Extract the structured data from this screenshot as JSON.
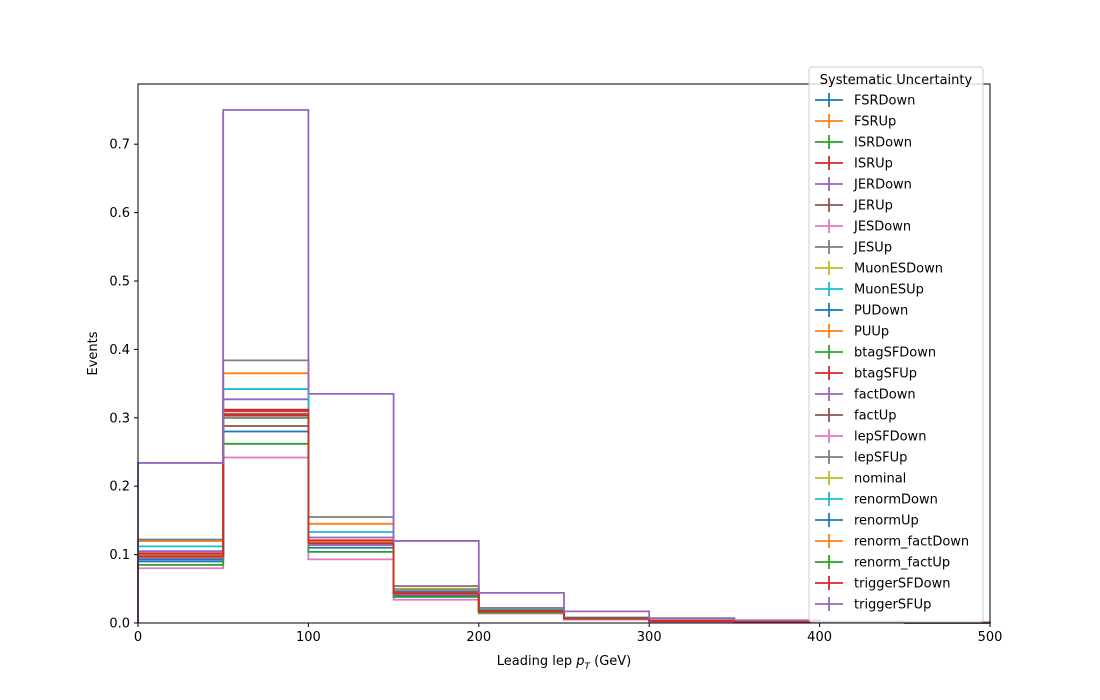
{
  "chart_data": {
    "type": "line",
    "step": true,
    "xlabel": "Leading lep p_T (GeV)",
    "xlabel_parts": {
      "prefix": "Leading lep ",
      "var": "p",
      "sub": "T",
      "suffix": " (GeV)"
    },
    "ylabel": "Events",
    "xlim": [
      0,
      500
    ],
    "ylim": [
      0,
      0.788
    ],
    "xticks": [
      "0",
      "100",
      "200",
      "300",
      "400",
      "500"
    ],
    "yticks": [
      "0.0",
      "0.1",
      "0.2",
      "0.3",
      "0.4",
      "0.5",
      "0.6",
      "0.7"
    ],
    "bin_edges": [
      0,
      50,
      100,
      150,
      200,
      250,
      300,
      350,
      400,
      450,
      500
    ],
    "grid": false,
    "legend": {
      "title": "Systematic Uncertainty",
      "placement": "upper-right"
    },
    "series": [
      {
        "name": "FSRDown",
        "color": "#1f77b4",
        "values": [
          0.09,
          0.28,
          0.11,
          0.04,
          0.016,
          0.006,
          0.003,
          0.0015,
          0.0008,
          0.0004
        ]
      },
      {
        "name": "FSRUp",
        "color": "#ff7f0e",
        "values": [
          0.12,
          0.365,
          0.145,
          0.05,
          0.021,
          0.008,
          0.004,
          0.002,
          0.001,
          0.0005
        ]
      },
      {
        "name": "ISRDown",
        "color": "#2ca02c",
        "values": [
          0.095,
          0.3,
          0.118,
          0.042,
          0.017,
          0.007,
          0.003,
          0.0016,
          0.0009,
          0.0004
        ]
      },
      {
        "name": "ISRUp",
        "color": "#d62728",
        "values": [
          0.1,
          0.31,
          0.12,
          0.045,
          0.018,
          0.007,
          0.003,
          0.0017,
          0.0009,
          0.0004
        ]
      },
      {
        "name": "JERDown",
        "color": "#9467bd",
        "values": [
          0.105,
          0.327,
          0.125,
          0.046,
          0.019,
          0.007,
          0.003,
          0.0017,
          0.0009,
          0.0005
        ]
      },
      {
        "name": "JERUp",
        "color": "#8c564b",
        "values": [
          0.098,
          0.288,
          0.12,
          0.044,
          0.018,
          0.007,
          0.003,
          0.0016,
          0.0009,
          0.0004
        ]
      },
      {
        "name": "JESDown",
        "color": "#e377c2",
        "values": [
          0.08,
          0.242,
          0.093,
          0.034,
          0.014,
          0.005,
          0.002,
          0.0013,
          0.0007,
          0.0003
        ]
      },
      {
        "name": "JESUp",
        "color": "#7f7f7f",
        "values": [
          0.122,
          0.384,
          0.155,
          0.054,
          0.022,
          0.008,
          0.004,
          0.0021,
          0.0011,
          0.0005
        ]
      },
      {
        "name": "MuonESDown",
        "color": "#bcbd22",
        "values": [
          0.096,
          0.305,
          0.117,
          0.043,
          0.017,
          0.007,
          0.003,
          0.0016,
          0.0009,
          0.0004
        ]
      },
      {
        "name": "MuonESUp",
        "color": "#17becf",
        "values": [
          0.112,
          0.342,
          0.133,
          0.048,
          0.02,
          0.008,
          0.003,
          0.0018,
          0.001,
          0.0005
        ]
      },
      {
        "name": "PUDown",
        "color": "#1f77b4",
        "values": [
          0.093,
          0.303,
          0.114,
          0.041,
          0.017,
          0.007,
          0.003,
          0.0016,
          0.0008,
          0.0004
        ]
      },
      {
        "name": "PUUp",
        "color": "#ff7f0e",
        "values": [
          0.099,
          0.306,
          0.119,
          0.044,
          0.018,
          0.007,
          0.003,
          0.0017,
          0.0009,
          0.0004
        ]
      },
      {
        "name": "btagSFDown",
        "color": "#2ca02c",
        "values": [
          0.085,
          0.262,
          0.104,
          0.038,
          0.015,
          0.006,
          0.003,
          0.0014,
          0.0008,
          0.0004
        ]
      },
      {
        "name": "btagSFUp",
        "color": "#d62728",
        "values": [
          0.102,
          0.312,
          0.121,
          0.045,
          0.018,
          0.007,
          0.003,
          0.0017,
          0.0009,
          0.0004
        ]
      },
      {
        "name": "factDown",
        "color": "#9467bd",
        "values": [
          0.097,
          0.304,
          0.116,
          0.043,
          0.017,
          0.007,
          0.003,
          0.0016,
          0.0009,
          0.0004
        ]
      },
      {
        "name": "factUp",
        "color": "#8c564b",
        "values": [
          0.097,
          0.304,
          0.116,
          0.043,
          0.017,
          0.007,
          0.003,
          0.0016,
          0.0009,
          0.0004
        ]
      },
      {
        "name": "lepSFDown",
        "color": "#e377c2",
        "values": [
          0.096,
          0.302,
          0.115,
          0.042,
          0.017,
          0.007,
          0.003,
          0.0016,
          0.0009,
          0.0004
        ]
      },
      {
        "name": "lepSFUp",
        "color": "#7f7f7f",
        "values": [
          0.098,
          0.306,
          0.117,
          0.043,
          0.017,
          0.007,
          0.003,
          0.0016,
          0.0009,
          0.0004
        ]
      },
      {
        "name": "nominal",
        "color": "#bcbd22",
        "values": [
          0.097,
          0.304,
          0.116,
          0.043,
          0.017,
          0.007,
          0.003,
          0.0016,
          0.0009,
          0.0004
        ]
      },
      {
        "name": "renormDown",
        "color": "#17becf",
        "values": [
          0.097,
          0.304,
          0.116,
          0.043,
          0.017,
          0.007,
          0.003,
          0.0016,
          0.0009,
          0.0004
        ]
      },
      {
        "name": "renormUp",
        "color": "#1f77b4",
        "values": [
          0.097,
          0.304,
          0.116,
          0.043,
          0.017,
          0.007,
          0.003,
          0.0016,
          0.0009,
          0.0004
        ]
      },
      {
        "name": "renorm_factDown",
        "color": "#ff7f0e",
        "values": [
          0.097,
          0.304,
          0.116,
          0.043,
          0.017,
          0.007,
          0.003,
          0.0016,
          0.0009,
          0.0004
        ]
      },
      {
        "name": "renorm_factUp",
        "color": "#2ca02c",
        "values": [
          0.097,
          0.304,
          0.116,
          0.043,
          0.017,
          0.007,
          0.003,
          0.0016,
          0.0009,
          0.0004
        ]
      },
      {
        "name": "triggerSFDown",
        "color": "#d62728",
        "values": [
          0.097,
          0.304,
          0.116,
          0.043,
          0.017,
          0.007,
          0.003,
          0.0016,
          0.0009,
          0.0004
        ]
      },
      {
        "name": "triggerSFUp",
        "color": "#9467bd",
        "values": [
          0.234,
          0.75,
          0.335,
          0.12,
          0.044,
          0.017,
          0.007,
          0.004,
          0.002,
          0.001
        ]
      }
    ]
  }
}
